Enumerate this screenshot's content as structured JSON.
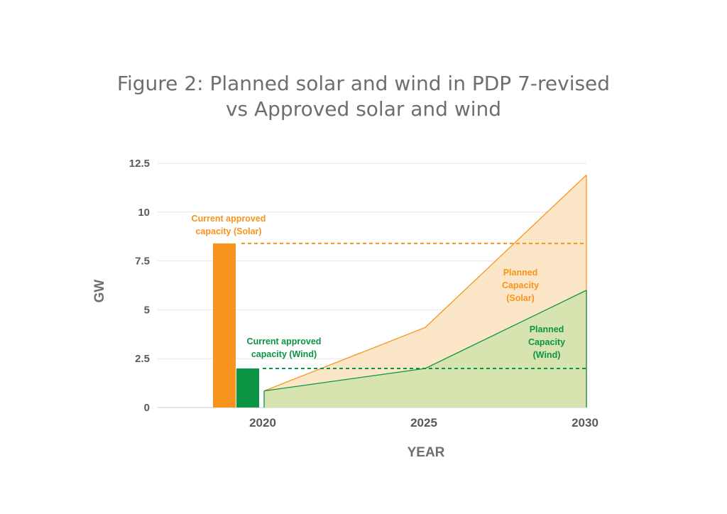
{
  "chart_data": {
    "type": "area",
    "title_line1": "Figure 2: Planned solar and wind in PDP 7-revised",
    "title_line2": "vs Approved solar and wind",
    "xlabel": "YEAR",
    "ylabel": "GW",
    "ylim": [
      0,
      12.5
    ],
    "y_ticks": [
      "0",
      "2.5",
      "5",
      "7.5",
      "10",
      "12.5"
    ],
    "x_ticks": [
      "2020",
      "2025",
      "2030"
    ],
    "grid": true,
    "colors": {
      "solar": "#f7941d",
      "solar_fill": "#fce6c8",
      "wind": "#0b9444",
      "wind_fill": "#d7e4b0",
      "grid": "#e6e6e6",
      "axis": "#c7c8ca"
    },
    "bars": [
      {
        "name": "Current approved capacity (Solar)",
        "value": 8.4
      },
      {
        "name": "Current approved capacity (Wind)",
        "value": 2.0
      }
    ],
    "reference_lines": [
      {
        "series": "solar",
        "value": 8.4
      },
      {
        "series": "wind",
        "value": 2.0
      }
    ],
    "series": [
      {
        "name": "Planned Capacity (Solar)",
        "x": [
          2020,
          2025,
          2030
        ],
        "values": [
          0.85,
          4.1,
          11.9
        ]
      },
      {
        "name": "Planned Capacity (Wind)",
        "x": [
          2020,
          2025,
          2030
        ],
        "values": [
          0.85,
          2.0,
          6.0
        ]
      }
    ],
    "annotations": {
      "bar_solar": [
        "Current approved",
        "capacity (Solar)"
      ],
      "bar_wind": [
        "Current approved",
        "capacity (Wind)"
      ],
      "planned_solar": [
        "Planned",
        "Capacity",
        "(Solar)"
      ],
      "planned_wind": [
        "Planned",
        "Capacity",
        "(Wind)"
      ]
    }
  }
}
